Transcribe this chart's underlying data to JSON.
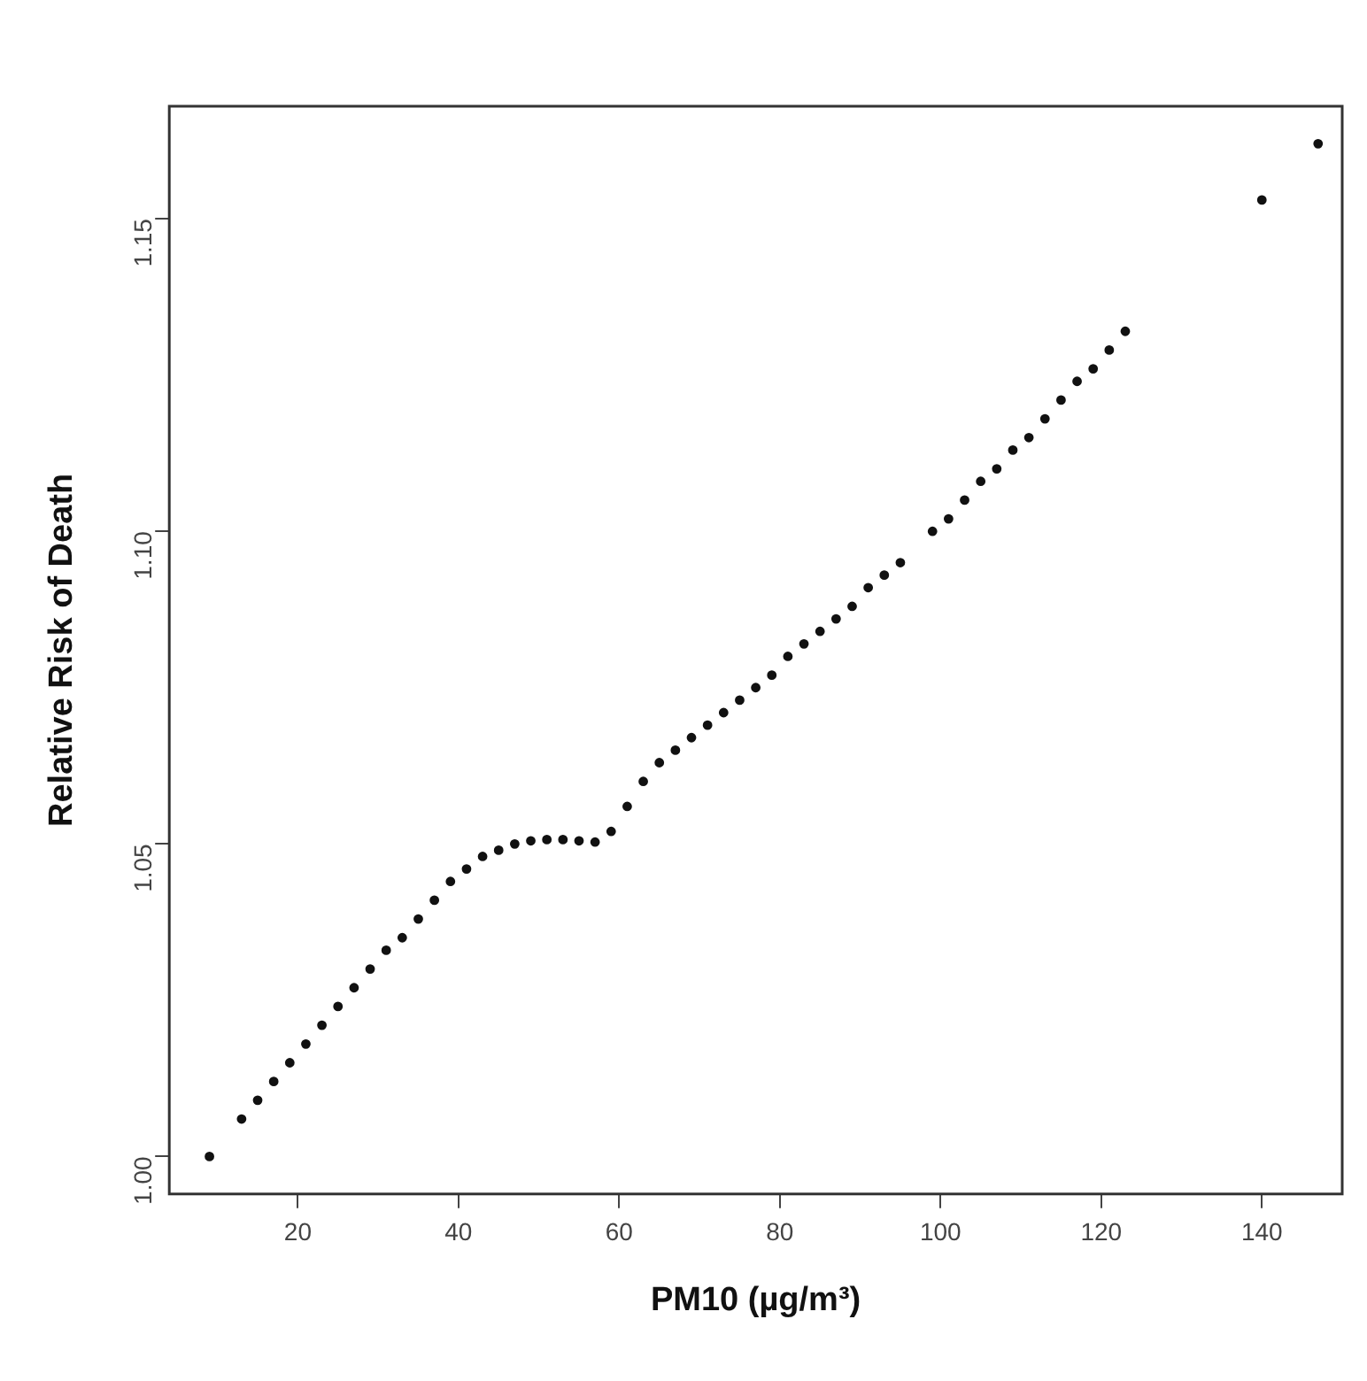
{
  "chart_data": {
    "type": "scatter",
    "xlabel": "PM10 (µg/m³)",
    "ylabel": "Relative Risk of Death",
    "marker": "circle",
    "color": "#111111",
    "grid": false,
    "legend": false,
    "x": [
      9,
      13,
      15,
      17,
      19,
      21,
      23,
      25,
      27,
      29,
      31,
      33,
      35,
      37,
      39,
      41,
      43,
      45,
      47,
      49,
      51,
      53,
      55,
      57,
      59,
      61,
      63,
      65,
      67,
      69,
      71,
      73,
      75,
      77,
      79,
      81,
      83,
      85,
      87,
      89,
      91,
      93,
      95,
      99,
      101,
      103,
      105,
      107,
      109,
      111,
      113,
      115,
      117,
      119,
      121,
      123,
      140,
      147
    ],
    "values": [
      1.0,
      1.006,
      1.009,
      1.012,
      1.015,
      1.018,
      1.021,
      1.024,
      1.027,
      1.03,
      1.033,
      1.035,
      1.038,
      1.041,
      1.044,
      1.046,
      1.048,
      1.049,
      1.05,
      1.0505,
      1.0507,
      1.0507,
      1.0505,
      1.0503,
      1.052,
      1.056,
      1.06,
      1.063,
      1.065,
      1.067,
      1.069,
      1.071,
      1.073,
      1.075,
      1.077,
      1.08,
      1.082,
      1.084,
      1.086,
      1.088,
      1.091,
      1.093,
      1.095,
      1.1,
      1.102,
      1.105,
      1.108,
      1.11,
      1.113,
      1.115,
      1.118,
      1.121,
      1.124,
      1.126,
      1.129,
      1.132,
      1.153,
      1.162
    ],
    "xlim": [
      4,
      150
    ],
    "xticks": [
      20,
      40,
      60,
      80,
      100,
      120,
      140
    ],
    "ylim": [
      0.994,
      1.168
    ],
    "yticks": [
      {
        "value": 1.0,
        "label": "1.00"
      },
      {
        "value": 1.05,
        "label": "1.05"
      },
      {
        "value": 1.1,
        "label": "1.10"
      },
      {
        "value": 1.15,
        "label": "1.15"
      }
    ]
  }
}
